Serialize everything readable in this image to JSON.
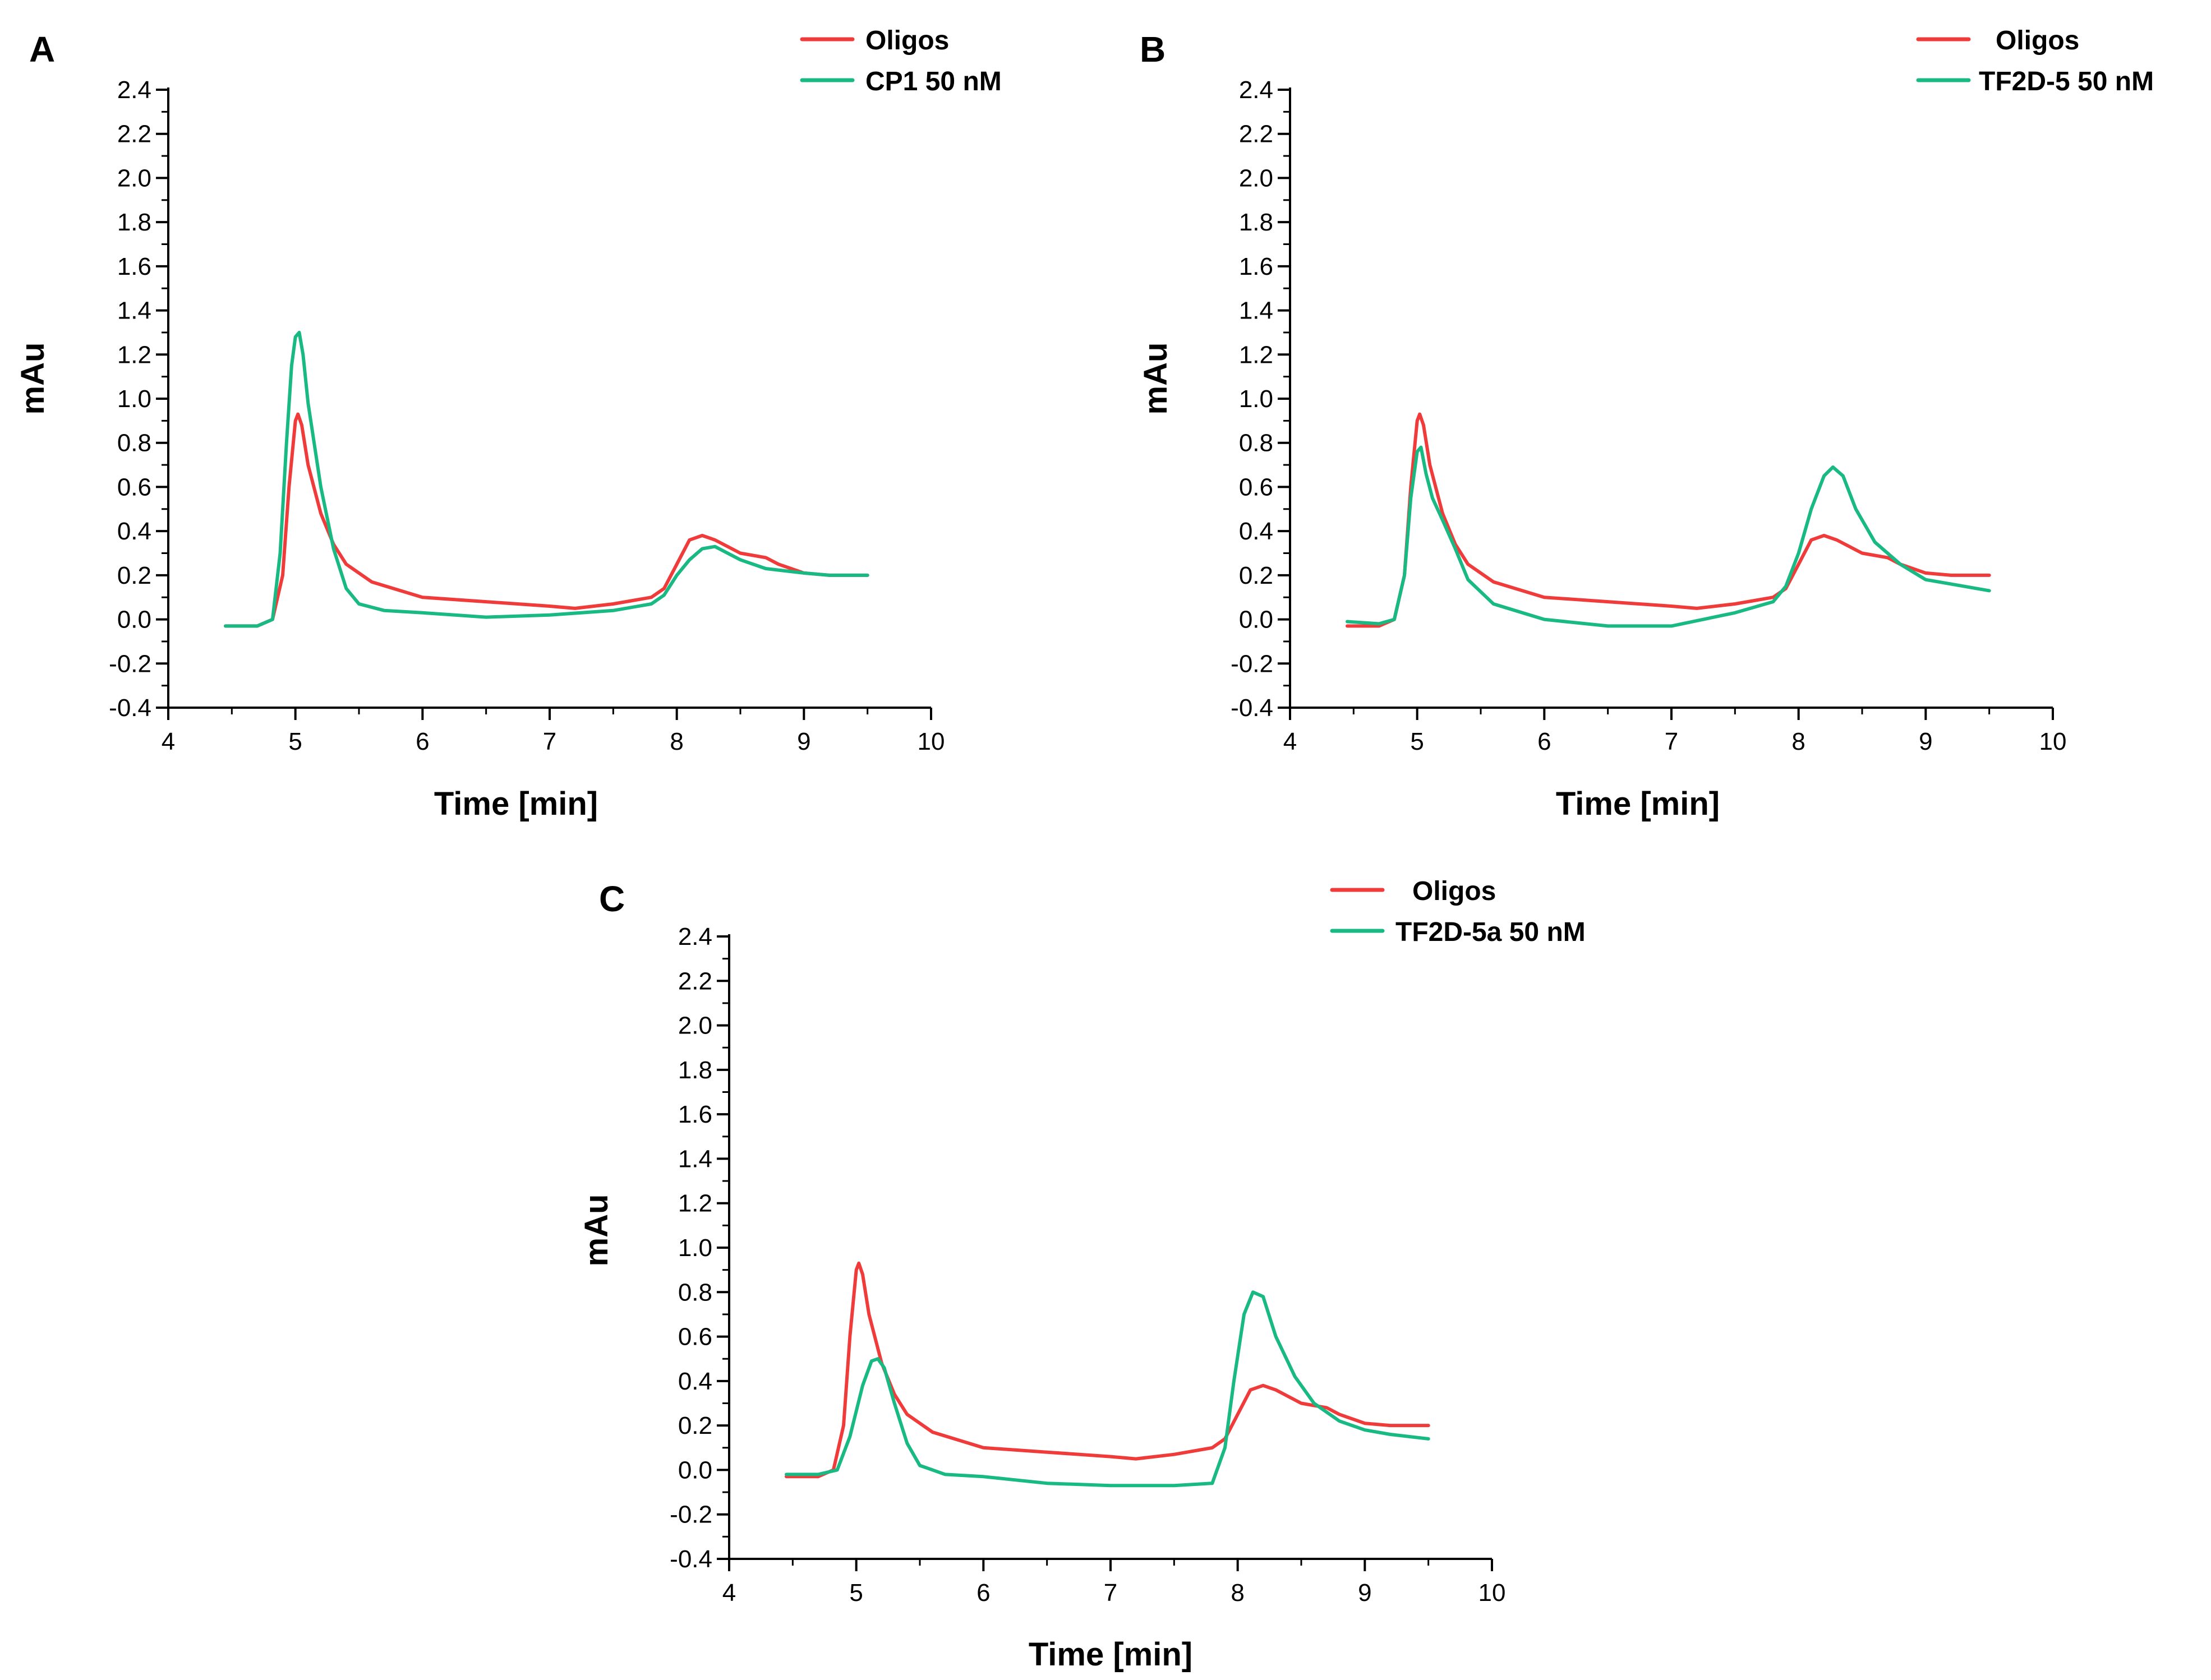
{
  "colors": {
    "oligos": "#f03b3b",
    "sample": "#19b983"
  },
  "chart_data": [
    {
      "panel": "A",
      "type": "line",
      "xlabel": "Time [min]",
      "ylabel": "mAu",
      "xlim": [
        4,
        10
      ],
      "ylim": [
        -0.4,
        2.4
      ],
      "xticks": [
        4,
        5,
        6,
        7,
        8,
        9,
        10
      ],
      "yticks": [
        -0.4,
        -0.2,
        0.0,
        0.2,
        0.4,
        0.6,
        0.8,
        1.0,
        1.2,
        1.4,
        1.6,
        1.8,
        2.0,
        2.2,
        2.4
      ],
      "legend": "top-right",
      "series": [
        {
          "name": "Oligos",
          "color": "#f03b3b",
          "x": [
            4.45,
            4.7,
            4.82,
            4.9,
            4.95,
            5.0,
            5.02,
            5.05,
            5.1,
            5.2,
            5.3,
            5.4,
            5.6,
            6.0,
            6.5,
            7.0,
            7.2,
            7.5,
            7.8,
            7.9,
            8.0,
            8.1,
            8.2,
            8.3,
            8.5,
            8.7,
            8.8,
            9.0,
            9.2,
            9.5
          ],
          "y": [
            -0.03,
            -0.03,
            0.0,
            0.2,
            0.6,
            0.9,
            0.93,
            0.88,
            0.7,
            0.48,
            0.34,
            0.25,
            0.17,
            0.1,
            0.08,
            0.06,
            0.05,
            0.07,
            0.1,
            0.14,
            0.25,
            0.36,
            0.38,
            0.36,
            0.3,
            0.28,
            0.25,
            0.21,
            0.2,
            0.2
          ]
        },
        {
          "name": "CP1 50 nM",
          "color": "#19b983",
          "x": [
            4.45,
            4.7,
            4.82,
            4.88,
            4.93,
            4.97,
            5.0,
            5.03,
            5.06,
            5.1,
            5.2,
            5.3,
            5.4,
            5.5,
            5.7,
            6.0,
            6.5,
            7.0,
            7.5,
            7.8,
            7.9,
            8.0,
            8.1,
            8.2,
            8.3,
            8.5,
            8.7,
            9.0,
            9.2,
            9.5
          ],
          "y": [
            -0.03,
            -0.03,
            0.0,
            0.3,
            0.8,
            1.15,
            1.28,
            1.3,
            1.2,
            0.98,
            0.6,
            0.32,
            0.14,
            0.07,
            0.04,
            0.03,
            0.01,
            0.02,
            0.04,
            0.07,
            0.11,
            0.2,
            0.27,
            0.32,
            0.33,
            0.27,
            0.23,
            0.21,
            0.2,
            0.2
          ]
        }
      ]
    },
    {
      "panel": "B",
      "type": "line",
      "xlabel": "Time [min]",
      "ylabel": "mAu",
      "xlim": [
        4,
        10
      ],
      "ylim": [
        -0.4,
        2.4
      ],
      "xticks": [
        4,
        5,
        6,
        7,
        8,
        9,
        10
      ],
      "yticks": [
        -0.4,
        -0.2,
        0.0,
        0.2,
        0.4,
        0.6,
        0.8,
        1.0,
        1.2,
        1.4,
        1.6,
        1.8,
        2.0,
        2.2,
        2.4
      ],
      "legend": "top-right",
      "series": [
        {
          "name": "Oligos",
          "color": "#f03b3b",
          "x": [
            4.45,
            4.7,
            4.82,
            4.9,
            4.95,
            5.0,
            5.02,
            5.05,
            5.1,
            5.2,
            5.3,
            5.4,
            5.6,
            6.0,
            6.5,
            7.0,
            7.2,
            7.5,
            7.8,
            7.9,
            8.0,
            8.1,
            8.2,
            8.3,
            8.5,
            8.7,
            8.8,
            9.0,
            9.2,
            9.5
          ],
          "y": [
            -0.03,
            -0.03,
            0.0,
            0.2,
            0.6,
            0.9,
            0.93,
            0.88,
            0.7,
            0.48,
            0.34,
            0.25,
            0.17,
            0.1,
            0.08,
            0.06,
            0.05,
            0.07,
            0.1,
            0.14,
            0.25,
            0.36,
            0.38,
            0.36,
            0.3,
            0.28,
            0.25,
            0.21,
            0.2,
            0.2
          ]
        },
        {
          "name": "TF2D-5 50 nM",
          "color": "#19b983",
          "x": [
            4.45,
            4.7,
            4.82,
            4.9,
            4.95,
            5.0,
            5.03,
            5.07,
            5.12,
            5.2,
            5.3,
            5.4,
            5.6,
            6.0,
            6.5,
            7.0,
            7.5,
            7.8,
            7.9,
            8.0,
            8.1,
            8.2,
            8.27,
            8.35,
            8.45,
            8.6,
            8.8,
            9.0,
            9.2,
            9.5
          ],
          "y": [
            -0.01,
            -0.02,
            0.0,
            0.2,
            0.55,
            0.76,
            0.78,
            0.66,
            0.55,
            0.45,
            0.32,
            0.18,
            0.07,
            0.0,
            -0.03,
            -0.03,
            0.03,
            0.08,
            0.15,
            0.3,
            0.5,
            0.65,
            0.69,
            0.65,
            0.5,
            0.35,
            0.25,
            0.18,
            0.16,
            0.13
          ]
        }
      ]
    },
    {
      "panel": "C",
      "type": "line",
      "xlabel": "Time [min]",
      "ylabel": "mAu",
      "xlim": [
        4,
        10
      ],
      "ylim": [
        -0.4,
        2.4
      ],
      "xticks": [
        4,
        5,
        6,
        7,
        8,
        9,
        10
      ],
      "yticks": [
        -0.4,
        -0.2,
        0.0,
        0.2,
        0.4,
        0.6,
        0.8,
        1.0,
        1.2,
        1.4,
        1.6,
        1.8,
        2.0,
        2.2,
        2.4
      ],
      "legend": "top-right",
      "series": [
        {
          "name": "Oligos",
          "color": "#f03b3b",
          "x": [
            4.45,
            4.7,
            4.82,
            4.9,
            4.95,
            5.0,
            5.02,
            5.05,
            5.1,
            5.2,
            5.3,
            5.4,
            5.6,
            6.0,
            6.5,
            7.0,
            7.2,
            7.5,
            7.8,
            7.9,
            8.0,
            8.1,
            8.2,
            8.3,
            8.5,
            8.7,
            8.8,
            9.0,
            9.2,
            9.5
          ],
          "y": [
            -0.03,
            -0.03,
            0.0,
            0.2,
            0.6,
            0.9,
            0.93,
            0.88,
            0.7,
            0.48,
            0.34,
            0.25,
            0.17,
            0.1,
            0.08,
            0.06,
            0.05,
            0.07,
            0.1,
            0.14,
            0.25,
            0.36,
            0.38,
            0.36,
            0.3,
            0.28,
            0.25,
            0.21,
            0.2,
            0.2
          ]
        },
        {
          "name": "TF2D-5a 50 nM",
          "color": "#19b983",
          "x": [
            4.45,
            4.7,
            4.85,
            4.95,
            5.05,
            5.12,
            5.17,
            5.22,
            5.3,
            5.4,
            5.5,
            5.7,
            6.0,
            6.5,
            7.0,
            7.5,
            7.8,
            7.9,
            7.97,
            8.05,
            8.12,
            8.2,
            8.3,
            8.45,
            8.6,
            8.8,
            9.0,
            9.2,
            9.5
          ],
          "y": [
            -0.02,
            -0.02,
            0.0,
            0.15,
            0.38,
            0.49,
            0.5,
            0.46,
            0.3,
            0.12,
            0.02,
            -0.02,
            -0.03,
            -0.06,
            -0.07,
            -0.07,
            -0.06,
            0.1,
            0.4,
            0.7,
            0.8,
            0.78,
            0.6,
            0.42,
            0.3,
            0.22,
            0.18,
            0.16,
            0.14
          ]
        }
      ]
    }
  ]
}
